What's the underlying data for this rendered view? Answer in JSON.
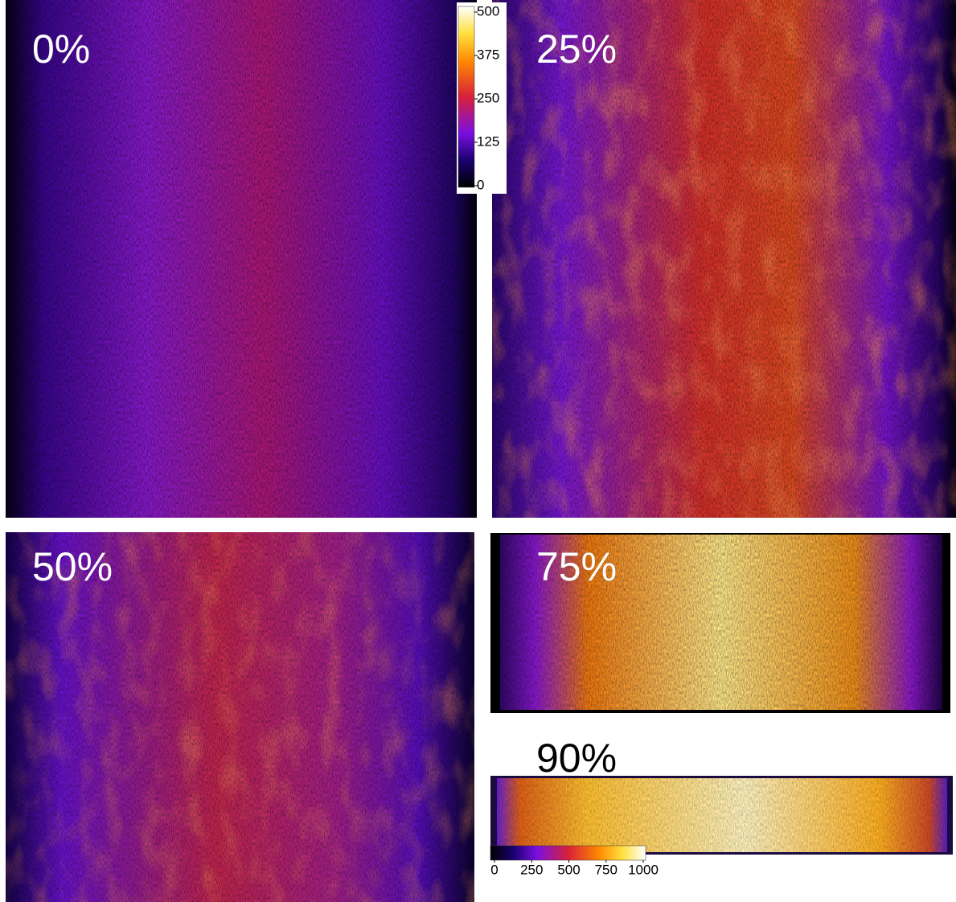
{
  "panels": [
    {
      "label": "0%"
    },
    {
      "label": "25%"
    },
    {
      "label": "50%"
    },
    {
      "label": "75%"
    },
    {
      "label": "90%"
    }
  ],
  "colorbars": [
    {
      "ticks": [
        0,
        125,
        250,
        375,
        500
      ]
    },
    {
      "ticks": [
        0,
        250,
        500,
        750,
        1000
      ]
    }
  ]
}
